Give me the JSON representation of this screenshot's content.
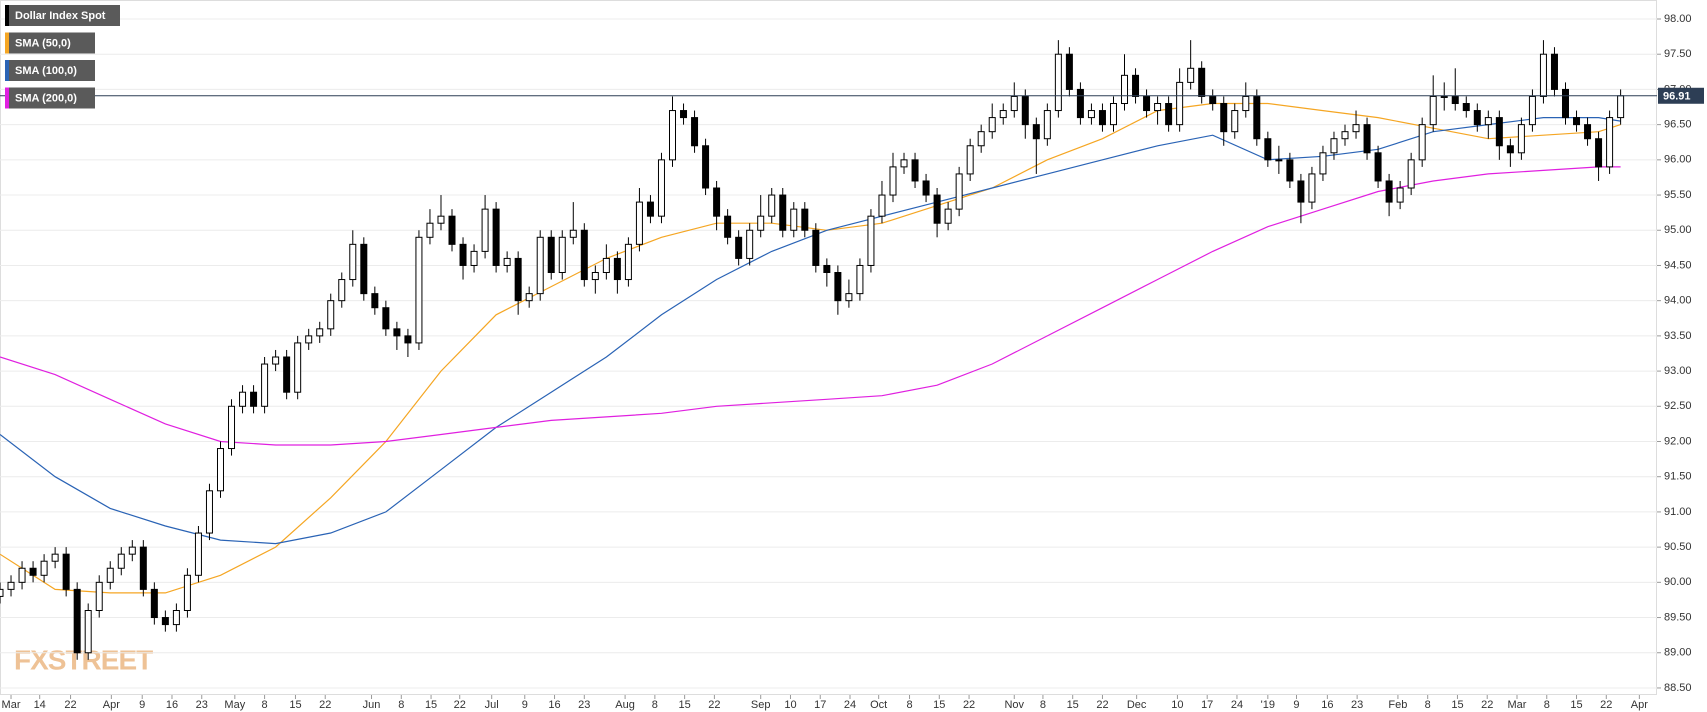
{
  "chart_data": {
    "type": "candlestick",
    "name": "Dollar Index Spot",
    "color": "#000000",
    "watermark": "FXSTREET",
    "xlim": [
      0,
      150.3
    ],
    "ylim": [
      88.4,
      98.27
    ],
    "grid": true,
    "legend": "top-left",
    "xticks": [
      {
        "value": 1.0,
        "label": "Mar"
      },
      {
        "value": 3.6,
        "label": "14"
      },
      {
        "value": 6.4,
        "label": "22"
      },
      {
        "value": 10.1,
        "label": "Apr"
      },
      {
        "value": 12.9,
        "label": "9"
      },
      {
        "value": 15.6,
        "label": "16"
      },
      {
        "value": 18.3,
        "label": "23"
      },
      {
        "value": 21.3,
        "label": "May"
      },
      {
        "value": 24.0,
        "label": "8"
      },
      {
        "value": 26.8,
        "label": "15"
      },
      {
        "value": 29.5,
        "label": "22"
      },
      {
        "value": 33.7,
        "label": "Jun"
      },
      {
        "value": 36.4,
        "label": "8"
      },
      {
        "value": 39.1,
        "label": "15"
      },
      {
        "value": 41.7,
        "label": "22"
      },
      {
        "value": 44.6,
        "label": "Jul"
      },
      {
        "value": 47.6,
        "label": "9"
      },
      {
        "value": 50.3,
        "label": "16"
      },
      {
        "value": 53.0,
        "label": "23"
      },
      {
        "value": 56.7,
        "label": "Aug"
      },
      {
        "value": 59.4,
        "label": "8"
      },
      {
        "value": 62.1,
        "label": "15"
      },
      {
        "value": 64.8,
        "label": "22"
      },
      {
        "value": 69.0,
        "label": "Sep"
      },
      {
        "value": 71.7,
        "label": "10"
      },
      {
        "value": 74.4,
        "label": "17"
      },
      {
        "value": 77.1,
        "label": "24"
      },
      {
        "value": 79.7,
        "label": "Oct"
      },
      {
        "value": 82.5,
        "label": "8"
      },
      {
        "value": 85.2,
        "label": "15"
      },
      {
        "value": 87.9,
        "label": "22"
      },
      {
        "value": 92.0,
        "label": "Nov"
      },
      {
        "value": 94.6,
        "label": "8"
      },
      {
        "value": 97.3,
        "label": "15"
      },
      {
        "value": 100.0,
        "label": "22"
      },
      {
        "value": 103.1,
        "label": "Dec"
      },
      {
        "value": 106.8,
        "label": "10"
      },
      {
        "value": 109.5,
        "label": "17"
      },
      {
        "value": 112.2,
        "label": "24"
      },
      {
        "value": 115.0,
        "label": "'19"
      },
      {
        "value": 117.6,
        "label": "9"
      },
      {
        "value": 120.4,
        "label": "16"
      },
      {
        "value": 123.1,
        "label": "23"
      },
      {
        "value": 126.8,
        "label": "Feb"
      },
      {
        "value": 129.5,
        "label": "8"
      },
      {
        "value": 132.2,
        "label": "15"
      },
      {
        "value": 134.9,
        "label": "22"
      },
      {
        "value": 137.6,
        "label": "Mar"
      },
      {
        "value": 140.3,
        "label": "8"
      },
      {
        "value": 143.0,
        "label": "15"
      },
      {
        "value": 145.7,
        "label": "22"
      },
      {
        "value": 148.7,
        "label": "Apr"
      }
    ],
    "yticks": [
      {
        "value": 88.5,
        "label": "88.50"
      },
      {
        "value": 89.0,
        "label": "89.00"
      },
      {
        "value": 89.5,
        "label": "89.50"
      },
      {
        "value": 90.0,
        "label": "90.00"
      },
      {
        "value": 90.5,
        "label": "90.50"
      },
      {
        "value": 91.0,
        "label": "91.00"
      },
      {
        "value": 91.5,
        "label": "91.50"
      },
      {
        "value": 92.0,
        "label": "92.00"
      },
      {
        "value": 92.5,
        "label": "92.50"
      },
      {
        "value": 93.0,
        "label": "93.00"
      },
      {
        "value": 93.5,
        "label": "93.50"
      },
      {
        "value": 94.0,
        "label": "94.00"
      },
      {
        "value": 94.5,
        "label": "94.50"
      },
      {
        "value": 95.0,
        "label": "95.00"
      },
      {
        "value": 95.5,
        "label": "95.50"
      },
      {
        "value": 96.0,
        "label": "96.00"
      },
      {
        "value": 96.5,
        "label": "96.50"
      },
      {
        "value": 97.0,
        "label": "97.00"
      },
      {
        "value": 97.5,
        "label": "97.50"
      },
      {
        "value": 98.0,
        "label": "98.00"
      }
    ],
    "x": [
      0,
      1,
      2,
      3,
      4,
      5,
      6,
      7,
      8,
      9,
      10,
      11,
      12,
      13,
      14,
      15,
      16,
      17,
      18,
      19,
      20,
      21,
      22,
      23,
      24,
      25,
      26,
      27,
      28,
      29,
      30,
      31,
      32,
      33,
      34,
      35,
      36,
      37,
      38,
      39,
      40,
      41,
      42,
      43,
      44,
      45,
      46,
      47,
      48,
      49,
      50,
      51,
      52,
      53,
      54,
      55,
      56,
      57,
      58,
      59,
      60,
      61,
      62,
      63,
      64,
      65,
      66,
      67,
      68,
      69,
      70,
      71,
      72,
      73,
      74,
      75,
      76,
      77,
      78,
      79,
      80,
      81,
      82,
      83,
      84,
      85,
      86,
      87,
      88,
      89,
      90,
      91,
      92,
      93,
      94,
      95,
      96,
      97,
      98,
      99,
      100,
      101,
      102,
      103,
      104,
      105,
      106,
      107,
      108,
      109,
      110,
      111,
      112,
      113,
      114,
      115,
      116,
      117,
      118,
      119,
      120,
      121,
      122,
      123,
      124,
      125,
      126,
      127,
      128,
      129,
      130,
      131,
      132,
      133,
      134,
      135,
      136,
      137,
      138,
      139,
      140,
      141,
      142,
      143,
      144,
      145,
      146,
      147
    ],
    "open": [
      89.8,
      89.9,
      90.0,
      90.2,
      90.1,
      90.3,
      90.4,
      89.9,
      89.0,
      89.6,
      90.0,
      90.2,
      90.4,
      90.5,
      89.9,
      89.5,
      89.4,
      89.6,
      90.1,
      90.7,
      91.3,
      91.9,
      92.5,
      92.7,
      92.5,
      93.1,
      93.2,
      92.7,
      93.4,
      93.5,
      93.6,
      94.0,
      94.3,
      94.8,
      94.1,
      93.9,
      93.6,
      93.5,
      93.4,
      94.9,
      95.1,
      95.2,
      94.8,
      94.5,
      94.7,
      95.3,
      94.5,
      94.6,
      94.0,
      94.1,
      94.9,
      94.4,
      94.9,
      95.0,
      94.3,
      94.4,
      94.6,
      94.3,
      94.8,
      95.4,
      95.2,
      96.0,
      96.7,
      96.6,
      96.2,
      95.6,
      95.2,
      94.9,
      94.6,
      95.0,
      95.2,
      95.5,
      95.0,
      95.3,
      95.0,
      94.5,
      94.4,
      94.0,
      94.1,
      94.5,
      95.2,
      95.5,
      95.9,
      96.0,
      95.7,
      95.5,
      95.1,
      95.3,
      95.8,
      96.2,
      96.4,
      96.6,
      96.7,
      96.9,
      96.5,
      96.3,
      96.7,
      97.5,
      97.0,
      96.6,
      96.7,
      96.5,
      96.8,
      97.2,
      96.9,
      96.7,
      96.8,
      96.5,
      97.1,
      97.3,
      96.9,
      96.8,
      96.4,
      96.7,
      96.9,
      96.3,
      96.0,
      96.0,
      95.7,
      95.4,
      95.8,
      96.1,
      96.3,
      96.4,
      96.5,
      96.1,
      95.7,
      95.4,
      95.6,
      96.0,
      96.5,
      96.9,
      96.9,
      96.8,
      96.7,
      96.5,
      96.6,
      96.2,
      96.1,
      96.5,
      96.9,
      97.5,
      97.0,
      96.6,
      96.5,
      96.3,
      95.9,
      96.6
    ],
    "high": [
      90.0,
      90.1,
      90.3,
      90.3,
      90.4,
      90.5,
      90.5,
      90.0,
      89.7,
      90.1,
      90.3,
      90.5,
      90.6,
      90.6,
      90.0,
      89.6,
      89.7,
      90.2,
      90.8,
      91.4,
      92.0,
      92.6,
      92.8,
      92.8,
      93.2,
      93.3,
      93.3,
      93.5,
      93.6,
      93.7,
      94.1,
      94.4,
      95.0,
      94.9,
      94.2,
      94.0,
      93.7,
      93.6,
      95.0,
      95.3,
      95.5,
      95.3,
      94.9,
      94.8,
      95.5,
      95.4,
      94.7,
      94.7,
      94.2,
      95.0,
      95.0,
      95.0,
      95.4,
      95.1,
      94.5,
      94.8,
      94.7,
      94.9,
      95.6,
      95.5,
      96.1,
      96.9,
      96.8,
      96.7,
      96.3,
      95.7,
      95.3,
      95.0,
      95.1,
      95.5,
      95.6,
      95.6,
      95.4,
      95.4,
      95.1,
      94.6,
      94.5,
      94.3,
      94.6,
      95.3,
      95.7,
      96.1,
      96.1,
      96.1,
      95.8,
      95.6,
      95.4,
      95.9,
      96.3,
      96.5,
      96.8,
      96.8,
      97.1,
      97.0,
      96.6,
      96.8,
      97.7,
      97.6,
      97.1,
      96.8,
      96.8,
      96.9,
      97.5,
      97.3,
      97.0,
      96.9,
      96.9,
      97.3,
      97.7,
      97.4,
      97.0,
      96.9,
      96.8,
      97.1,
      97.0,
      96.4,
      96.2,
      96.1,
      95.8,
      95.9,
      96.2,
      96.4,
      96.5,
      96.7,
      96.6,
      96.2,
      95.8,
      95.7,
      96.1,
      96.6,
      97.2,
      97.1,
      97.3,
      96.9,
      96.8,
      96.7,
      96.7,
      96.3,
      96.6,
      97.0,
      97.7,
      97.6,
      97.1,
      96.7,
      96.6,
      96.4,
      96.7,
      97.0
    ],
    "low": [
      89.7,
      89.8,
      89.9,
      90.0,
      90.0,
      90.2,
      89.8,
      88.9,
      88.9,
      89.5,
      89.9,
      90.1,
      90.3,
      89.8,
      89.4,
      89.3,
      89.3,
      89.5,
      90.0,
      90.6,
      91.2,
      91.8,
      92.4,
      92.4,
      92.4,
      93.0,
      92.6,
      92.6,
      93.3,
      93.4,
      93.5,
      93.9,
      94.2,
      94.0,
      93.8,
      93.5,
      93.3,
      93.2,
      93.3,
      94.8,
      95.0,
      94.7,
      94.3,
      94.4,
      94.6,
      94.4,
      94.4,
      93.8,
      93.9,
      94.0,
      94.3,
      94.3,
      94.8,
      94.2,
      94.1,
      94.3,
      94.1,
      94.2,
      94.7,
      95.1,
      95.1,
      95.9,
      96.5,
      96.1,
      95.5,
      95.0,
      94.8,
      94.5,
      94.5,
      94.9,
      95.1,
      94.9,
      94.9,
      94.9,
      94.4,
      94.2,
      93.8,
      93.9,
      94.0,
      94.4,
      95.1,
      95.4,
      95.8,
      95.6,
      95.4,
      94.9,
      95.0,
      95.2,
      95.7,
      96.1,
      96.3,
      96.5,
      96.6,
      96.3,
      95.8,
      96.2,
      96.6,
      96.9,
      96.5,
      96.5,
      96.4,
      96.4,
      96.7,
      96.8,
      96.6,
      96.5,
      96.4,
      96.4,
      97.0,
      96.8,
      96.7,
      96.2,
      96.3,
      96.6,
      96.2,
      95.9,
      95.8,
      95.6,
      95.1,
      95.3,
      95.7,
      96.0,
      96.2,
      96.3,
      96.0,
      95.6,
      95.2,
      95.3,
      95.5,
      95.9,
      96.4,
      96.7,
      96.7,
      96.6,
      96.4,
      96.3,
      96.0,
      95.9,
      96.0,
      96.4,
      96.8,
      96.9,
      96.5,
      96.4,
      96.2,
      95.7,
      95.8,
      96.5
    ],
    "close": [
      89.9,
      90.0,
      90.2,
      90.1,
      90.3,
      90.4,
      89.9,
      89.0,
      89.6,
      90.0,
      90.2,
      90.4,
      90.5,
      89.9,
      89.5,
      89.4,
      89.6,
      90.1,
      90.7,
      91.3,
      91.9,
      92.5,
      92.7,
      92.5,
      93.1,
      93.2,
      92.7,
      93.4,
      93.5,
      93.6,
      94.0,
      94.3,
      94.8,
      94.1,
      93.9,
      93.6,
      93.5,
      93.4,
      94.9,
      95.1,
      95.2,
      94.8,
      94.5,
      94.7,
      95.3,
      94.5,
      94.6,
      94.0,
      94.1,
      94.9,
      94.4,
      94.9,
      95.0,
      94.3,
      94.4,
      94.6,
      94.3,
      94.8,
      95.4,
      95.2,
      96.0,
      96.7,
      96.6,
      96.2,
      95.6,
      95.2,
      94.9,
      94.6,
      95.0,
      95.2,
      95.5,
      95.0,
      95.3,
      95.0,
      94.5,
      94.4,
      94.0,
      94.1,
      94.5,
      95.2,
      95.5,
      95.9,
      96.0,
      95.7,
      95.5,
      95.1,
      95.3,
      95.8,
      96.2,
      96.4,
      96.6,
      96.7,
      96.9,
      96.5,
      96.3,
      96.7,
      97.5,
      97.0,
      96.6,
      96.7,
      96.5,
      96.8,
      97.2,
      96.9,
      96.7,
      96.8,
      96.5,
      97.1,
      97.3,
      96.9,
      96.8,
      96.4,
      96.7,
      96.9,
      96.3,
      96.0,
      96.0,
      95.7,
      95.4,
      95.8,
      96.1,
      96.3,
      96.4,
      96.5,
      96.1,
      95.7,
      95.4,
      95.6,
      96.0,
      96.5,
      96.9,
      96.9,
      96.8,
      96.7,
      96.5,
      96.6,
      96.2,
      96.1,
      96.5,
      96.9,
      97.5,
      97.0,
      96.6,
      96.5,
      96.3,
      95.9,
      96.6,
      96.91
    ],
    "series": [
      {
        "name": "SMA (50,0)",
        "color": "#f5a623",
        "x": [
          0,
          5,
          10,
          15,
          20,
          25,
          30,
          35,
          40,
          45,
          50,
          55,
          60,
          65,
          70,
          75,
          80,
          85,
          90,
          95,
          100,
          105,
          110,
          115,
          120,
          125,
          130,
          135,
          140,
          145,
          147
        ],
        "values": [
          90.4,
          89.9,
          89.85,
          89.85,
          90.1,
          90.5,
          91.2,
          92.0,
          93.0,
          93.8,
          94.2,
          94.6,
          94.9,
          95.1,
          95.1,
          95.0,
          95.1,
          95.35,
          95.6,
          96.0,
          96.3,
          96.7,
          96.8,
          96.8,
          96.7,
          96.6,
          96.45,
          96.3,
          96.35,
          96.4,
          96.5
        ]
      },
      {
        "name": "SMA (100,0)",
        "color": "#2a63b5",
        "x": [
          0,
          5,
          10,
          15,
          20,
          25,
          30,
          35,
          40,
          45,
          50,
          55,
          60,
          65,
          70,
          75,
          80,
          85,
          90,
          95,
          100,
          105,
          110,
          115,
          120,
          125,
          130,
          135,
          140,
          145,
          147
        ],
        "values": [
          92.1,
          91.5,
          91.05,
          90.8,
          90.6,
          90.55,
          90.7,
          91.0,
          91.6,
          92.2,
          92.7,
          93.2,
          93.8,
          94.3,
          94.7,
          95.0,
          95.2,
          95.4,
          95.6,
          95.8,
          96.0,
          96.2,
          96.35,
          96.0,
          96.05,
          96.15,
          96.4,
          96.5,
          96.6,
          96.6,
          96.55
        ]
      },
      {
        "name": "SMA (200,0)",
        "color": "#e020e0",
        "x": [
          0,
          5,
          10,
          15,
          20,
          25,
          30,
          35,
          40,
          45,
          50,
          55,
          60,
          65,
          70,
          75,
          80,
          85,
          90,
          95,
          100,
          105,
          110,
          115,
          120,
          125,
          130,
          135,
          140,
          145,
          147
        ],
        "values": [
          93.2,
          92.95,
          92.6,
          92.25,
          92.0,
          91.95,
          91.95,
          92.0,
          92.1,
          92.2,
          92.3,
          92.35,
          92.4,
          92.5,
          92.55,
          92.6,
          92.65,
          92.8,
          93.1,
          93.5,
          93.9,
          94.3,
          94.7,
          95.05,
          95.3,
          95.55,
          95.7,
          95.8,
          95.85,
          95.9,
          95.9
        ]
      }
    ]
  }
}
